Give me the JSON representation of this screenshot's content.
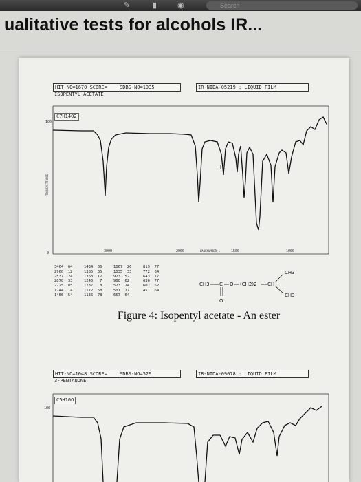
{
  "browser": {
    "search_placeholder": "Search"
  },
  "page_title": "ualitative tests for alcohols IR...",
  "spectrum1": {
    "hit_no": "HIT-NO=1670",
    "score": "SCORE=",
    "sdbs_no": "SDBS-NO=1935",
    "ir_nida": "IR-NIDA-05219 : LIQUID FILM",
    "compound": "ISOPENTYL ACETATE",
    "formula": "C7H14O2",
    "y_top_label": "100",
    "y_bottom_label": "0",
    "x_labels": [
      "3000",
      "2000",
      "1500",
      "1000"
    ],
    "wavenumber_label": "WAVENUMBER-1",
    "transmittance_label": "TRANSMITTANCE"
  },
  "peak_table": [
    [
      "3464  64",
      "1434  66",
      "1067  26",
      "819  77"
    ],
    [
      "2960  12",
      "1385  35",
      "1035  33",
      "772  84"
    ],
    [
      "2537  24",
      "1368  17",
      "973  52",
      "643  77"
    ],
    [
      "2870  33",
      "1246   7",
      "960  62",
      "636  77"
    ],
    [
      "2725  85",
      "1237   8",
      "523  74",
      "607  62"
    ],
    [
      "1744   4",
      "1172  58",
      "501  77",
      "451  64"
    ],
    [
      "1466  54",
      "1136  78",
      "657  64",
      ""
    ]
  ],
  "structure": {
    "left_group": "CH3",
    "c": "C",
    "o": "O",
    "chain": "(CH2)2",
    "ch": "CH",
    "branch_top": "CH3",
    "branch_bottom": "CH3",
    "carbonyl_o": "O"
  },
  "caption": "Figure 4: Isopentyl acetate - An ester",
  "spectrum2": {
    "hit_no": "HIT-NO=1048",
    "score": "SCORE=",
    "sdbs_no": "SDBS-NO=529",
    "ir_nida": "IR-NIDA-09078 : LIQUID FILM",
    "compound": "3-PENTANONE",
    "formula": "C5H10O",
    "y_top_label": "100"
  }
}
